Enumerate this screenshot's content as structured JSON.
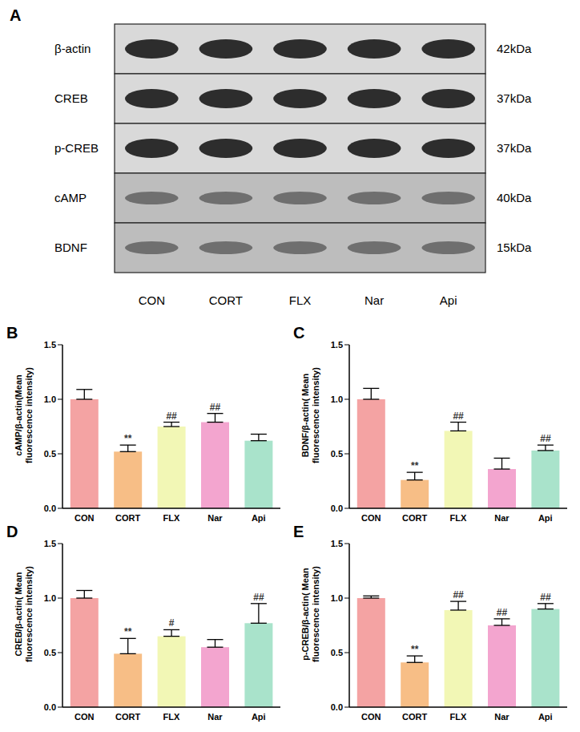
{
  "blot": {
    "panel": "A",
    "rows": [
      {
        "label": "β-actin",
        "size": "42kDa"
      },
      {
        "label": "CREB",
        "size": "37kDa"
      },
      {
        "label": "p-CREB",
        "size": "37kDa"
      },
      {
        "label": "cAMP",
        "size": "40kDa"
      },
      {
        "label": "BDNF",
        "size": "15kDa"
      }
    ],
    "groups": [
      "CON",
      "CORT",
      "FLX",
      "Nar",
      "Api"
    ]
  },
  "chart_data": [
    {
      "panel": "B",
      "type": "bar",
      "ylabel": [
        "cAMP/β-actin(Mean",
        "fluorescence intensity)"
      ],
      "categories": [
        "CON",
        "CORT",
        "FLX",
        "Nar",
        "Api"
      ],
      "values": [
        1.0,
        0.52,
        0.75,
        0.79,
        0.62
      ],
      "errors": [
        0.09,
        0.06,
        0.04,
        0.08,
        0.06
      ],
      "annotations": [
        null,
        "**",
        "##",
        "##",
        null
      ],
      "colors": [
        "#f4a3a3",
        "#f7be86",
        "#f2f7b5",
        "#f3a5cf",
        "#a9e3cb"
      ],
      "ylim": [
        0,
        1.5
      ],
      "yticks": [
        {
          "value": 0,
          "label": "0.0"
        },
        0.5,
        {
          "value": 1,
          "label": "1.0"
        },
        1.5
      ]
    },
    {
      "panel": "C",
      "type": "bar",
      "ylabel": [
        "BDNF/β-actin( Mean",
        "fluorescence intensity)"
      ],
      "categories": [
        "CON",
        "CORT",
        "FLX",
        "Nar",
        "Api"
      ],
      "values": [
        1.0,
        0.26,
        0.71,
        0.36,
        0.53
      ],
      "errors": [
        0.1,
        0.07,
        0.08,
        0.1,
        0.05
      ],
      "annotations": [
        null,
        "**",
        "##",
        null,
        "##"
      ],
      "colors": [
        "#f4a3a3",
        "#f7be86",
        "#f2f7b5",
        "#f3a5cf",
        "#a9e3cb"
      ],
      "ylim": [
        0,
        1.5
      ],
      "yticks": [
        {
          "value": 0,
          "label": "0.0"
        },
        0.5,
        {
          "value": 1,
          "label": "1.0"
        },
        1.5
      ]
    },
    {
      "panel": "D",
      "type": "bar",
      "ylabel": [
        "CREB/β-actin( Mean",
        "fluorescence intensity)"
      ],
      "categories": [
        "CON",
        "CORT",
        "FLX",
        "Nar",
        "Api"
      ],
      "values": [
        1.0,
        0.49,
        0.65,
        0.55,
        0.77
      ],
      "errors": [
        0.07,
        0.14,
        0.06,
        0.07,
        0.18
      ],
      "annotations": [
        null,
        "**",
        "#",
        null,
        "##"
      ],
      "colors": [
        "#f4a3a3",
        "#f7be86",
        "#f2f7b5",
        "#f3a5cf",
        "#a9e3cb"
      ],
      "ylim": [
        0,
        1.5
      ],
      "yticks": [
        {
          "value": 0,
          "label": "0.0"
        },
        0.5,
        {
          "value": 1,
          "label": "1.0"
        },
        1.5
      ]
    },
    {
      "panel": "E",
      "type": "bar",
      "ylabel": [
        "p-CREB/β-actin( Mean",
        "fluorescence intensity)"
      ],
      "categories": [
        "CON",
        "CORT",
        "FLX",
        "Nar",
        "Api"
      ],
      "values": [
        1.0,
        0.41,
        0.89,
        0.75,
        0.9
      ],
      "errors": [
        0.02,
        0.06,
        0.08,
        0.06,
        0.05
      ],
      "annotations": [
        null,
        "**",
        "##",
        "##",
        "##"
      ],
      "colors": [
        "#f4a3a3",
        "#f7be86",
        "#f2f7b5",
        "#f3a5cf",
        "#a9e3cb"
      ],
      "ylim": [
        0,
        1.5
      ],
      "yticks": [
        {
          "value": 0,
          "label": "0.0"
        },
        0.5,
        {
          "value": 1,
          "label": "1.0"
        },
        1.5
      ]
    }
  ]
}
